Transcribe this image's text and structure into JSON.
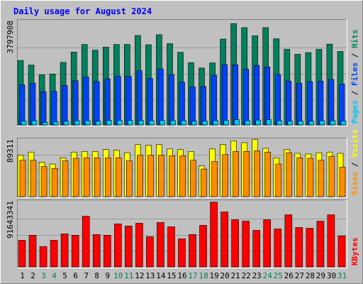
{
  "colors": {
    "frame_bg": "#c0c0c0",
    "plot_bg": "#c0c0c0",
    "gridline": "#9a9a9a",
    "hits": "#00805c",
    "files": "#0042f4",
    "pages": "#00c8f0",
    "visits": "#ffff00",
    "sites": "#ff8c00",
    "kbytes": "#ff0000",
    "title": "#0000ff",
    "weekend": "#00805c"
  },
  "chart_data": {
    "title": "Daily usage for August 2024",
    "type": "bar",
    "categories": [
      "1",
      "2",
      "3",
      "4",
      "5",
      "6",
      "7",
      "8",
      "9",
      "10",
      "11",
      "12",
      "13",
      "14",
      "15",
      "16",
      "17",
      "18",
      "19",
      "20",
      "21",
      "22",
      "23",
      "24",
      "25",
      "26",
      "27",
      "28",
      "29",
      "30",
      "31"
    ],
    "weekend_days": [
      "3",
      "4",
      "10",
      "11",
      "17",
      "18",
      "24",
      "25",
      "31"
    ],
    "panels": [
      {
        "axis_max_label": "3797908",
        "ymax": 3797908,
        "legend": [
          "Pages",
          "/",
          "Files",
          "/",
          "Hits"
        ],
        "legend_colors": [
          "#00c8f0",
          "#000000",
          "#0042f4",
          "#000000",
          "#00805c"
        ],
        "series": [
          {
            "name": "Hits",
            "color": "#00805c",
            "values": [
              2380000,
              2210000,
              1850000,
              1880000,
              2310000,
              2690000,
              2970000,
              2760000,
              2870000,
              2970000,
              2970000,
              3300000,
              2960000,
              3330000,
              3000000,
              2680000,
              2300000,
              2100000,
              2290000,
              3170000,
              3740000,
              3590000,
              3290000,
              3590000,
              3180000,
              2790000,
              2610000,
              2670000,
              2790000,
              2980000,
              2710000
            ]
          },
          {
            "name": "Files",
            "color": "#0042f4",
            "values": [
              1480000,
              1540000,
              1230000,
              1240000,
              1460000,
              1630000,
              1770000,
              1600000,
              1700000,
              1800000,
              1790000,
              2000000,
              1720000,
              2070000,
              1860000,
              1580000,
              1400000,
              1420000,
              1830000,
              2220000,
              2220000,
              2060000,
              2200000,
              2140000,
              1860000,
              1620000,
              1540000,
              1600000,
              1620000,
              1680000,
              1510000
            ]
          },
          {
            "name": "Pages",
            "color": "#00c8f0",
            "values": [
              150000,
              160000,
              100000,
              120000,
              140000,
              160000,
              160000,
              140000,
              170000,
              170000,
              170000,
              160000,
              160000,
              170000,
              160000,
              160000,
              140000,
              150000,
              160000,
              170000,
              190000,
              160000,
              180000,
              200000,
              160000,
              150000,
              150000,
              140000,
              160000,
              160000,
              150000
            ]
          }
        ]
      },
      {
        "axis_max_label": "89311",
        "ymax": 89311,
        "legend": [
          "Sites",
          "/",
          "Visits"
        ],
        "legend_colors": [
          "#ff8c00",
          "#000000",
          "#ffff00"
        ],
        "series": [
          {
            "name": "Visits",
            "color": "#ffff00",
            "values": [
              66000,
              71000,
              55000,
              52000,
              62000,
              71000,
              72000,
              72000,
              75000,
              74000,
              70000,
              83000,
              82000,
              83000,
              76000,
              75000,
              72000,
              49000,
              76000,
              83000,
              89000,
              86000,
              91000,
              77000,
              62000,
              75000,
              69000,
              68000,
              70000,
              71000,
              69000
            ]
          },
          {
            "name": "Sites",
            "color": "#ff8c00",
            "values": [
              58000,
              58000,
              48000,
              45000,
              57000,
              61000,
              62000,
              62000,
              62000,
              62000,
              57000,
              66000,
              66000,
              66000,
              65000,
              65000,
              58000,
              44000,
              56000,
              67000,
              72000,
              72000,
              73000,
              71000,
              52000,
              70000,
              62000,
              61000,
              58000,
              64000,
              47000
            ]
          }
        ]
      },
      {
        "axis_max_label": "91643341",
        "ymax": 91643341,
        "legend": [
          "KBytes"
        ],
        "legend_colors": [
          "#ff0000"
        ],
        "series": [
          {
            "name": "KBytes",
            "color": "#ff0000",
            "values": [
              38000000,
              45000000,
              29000000,
              38000000,
              47000000,
              45000000,
              72000000,
              46000000,
              45000000,
              61000000,
              58000000,
              62000000,
              43000000,
              63000000,
              57000000,
              40000000,
              46000000,
              59000000,
              92000000,
              78000000,
              67000000,
              65000000,
              52000000,
              67000000,
              54000000,
              74000000,
              56000000,
              55000000,
              65000000,
              74000000,
              44000000
            ]
          }
        ]
      }
    ]
  }
}
